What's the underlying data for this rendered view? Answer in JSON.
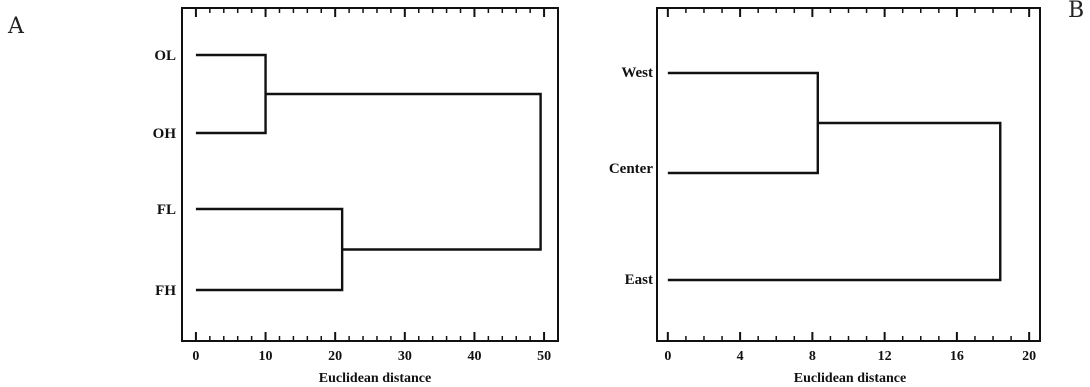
{
  "panels": [
    {
      "id": "A",
      "letter": "A",
      "xlabel": "Euclidean distance",
      "xticks": [
        0,
        10,
        20,
        30,
        40,
        50
      ],
      "xlim": [
        -2,
        52
      ],
      "minor_step": 2,
      "leaves": [
        "OL",
        "OH",
        "FL",
        "FH"
      ],
      "merges": [
        {
          "a": "OL",
          "b": "OH",
          "height": 10
        },
        {
          "a": "FL",
          "b": "FH",
          "height": 21
        },
        {
          "a": "OL+OH",
          "b": "FL+FH",
          "height": 49.5
        }
      ]
    },
    {
      "id": "B",
      "letter": "B",
      "xlabel": "Euclidean distance",
      "xticks": [
        0,
        4,
        8,
        12,
        16,
        20
      ],
      "xlim": [
        -0.6,
        20.6
      ],
      "minor_step": 1,
      "leaves": [
        "West",
        "Center",
        "East"
      ],
      "merges": [
        {
          "a": "West",
          "b": "Center",
          "height": 8.3
        },
        {
          "a": "West+Center",
          "b": "East",
          "height": 18.4
        }
      ]
    }
  ]
}
